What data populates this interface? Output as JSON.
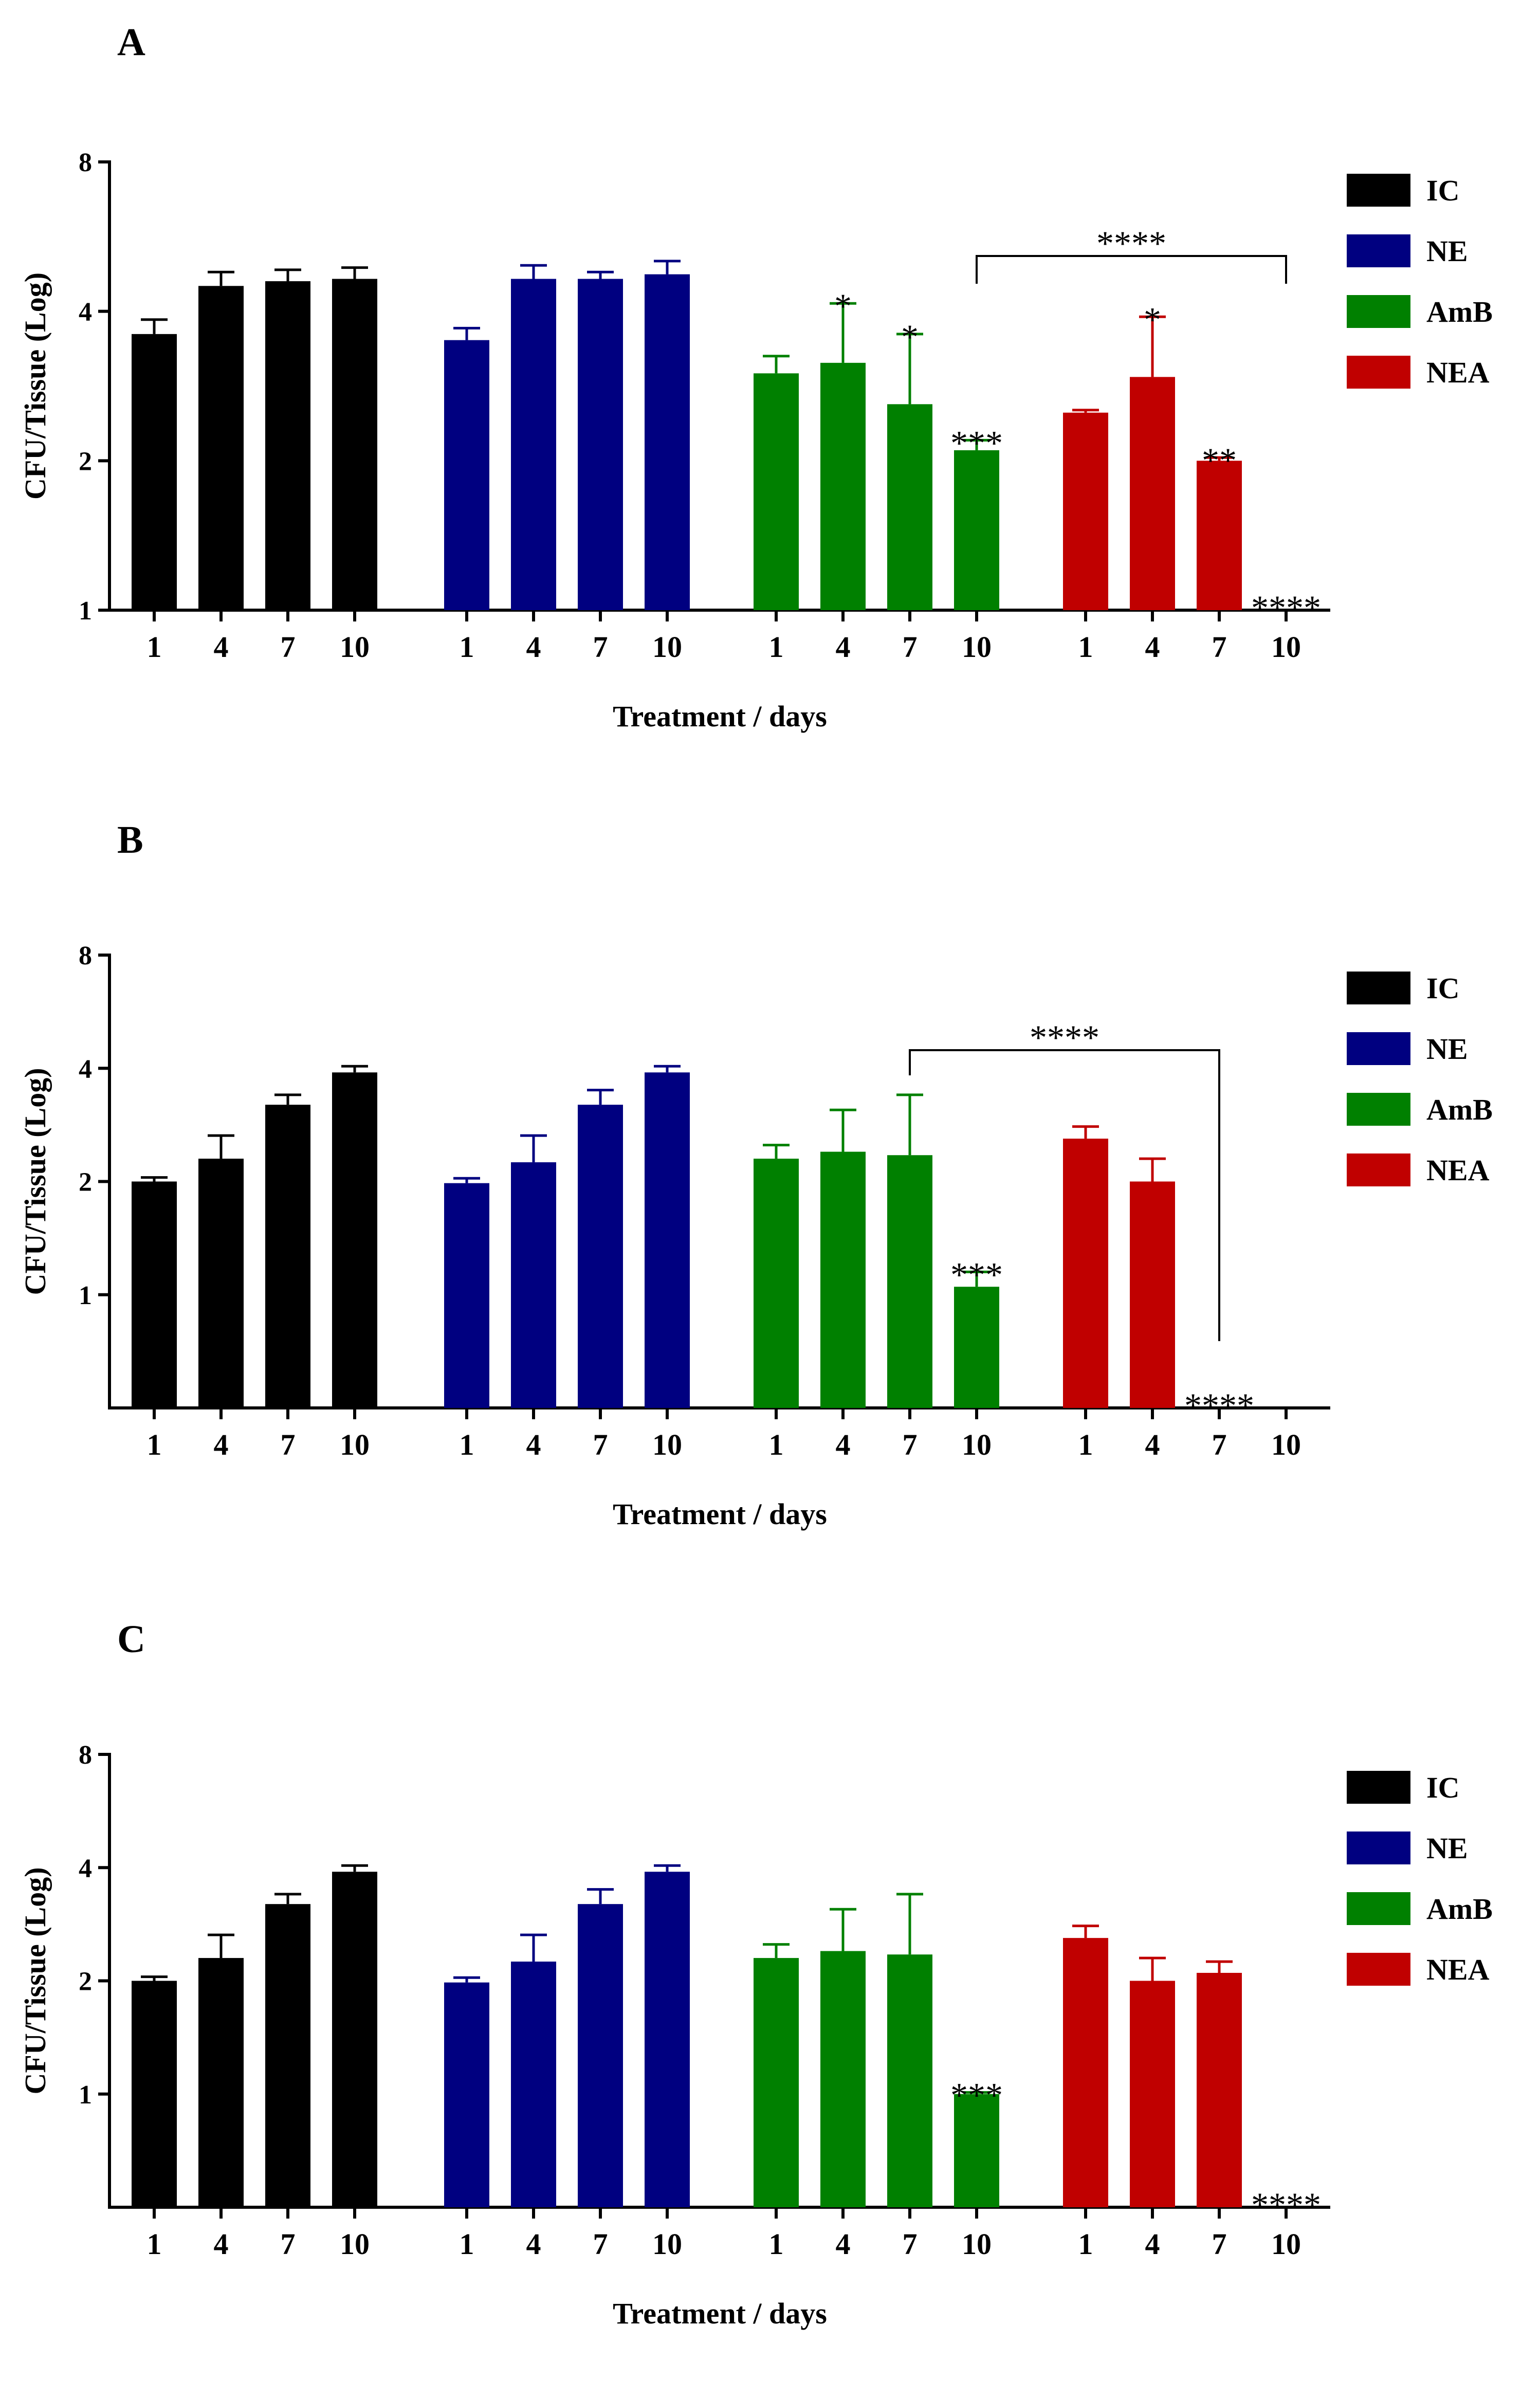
{
  "chart_data": [
    {
      "type": "bar",
      "panel_label": "A",
      "title": "",
      "xlabel": "Treatment / days",
      "ylabel": "CFU/Tissue (Log)",
      "yscale": "log2",
      "ylim": [
        1,
        8
      ],
      "yticks": [
        "1",
        "2",
        "4",
        "8"
      ],
      "legend": [
        "IC",
        "NE",
        "AmB",
        "NEA"
      ],
      "legend_position": "right",
      "colors": {
        "IC": "#000000",
        "NE": "#000080",
        "AmB": "#008000",
        "NEA": "#c00000"
      },
      "series": [
        {
          "name": "IC",
          "days": [
            "1",
            "4",
            "7",
            "10"
          ],
          "values": [
            3.6,
            4.5,
            4.6,
            4.65
          ],
          "errors": [
            0.25,
            0.3,
            0.25,
            0.25
          ],
          "stars": [
            "",
            "",
            "",
            ""
          ]
        },
        {
          "name": "NE",
          "days": [
            "1",
            "4",
            "7",
            "10"
          ],
          "values": [
            3.5,
            4.65,
            4.65,
            4.75
          ],
          "errors": [
            0.2,
            0.3,
            0.15,
            0.3
          ],
          "stars": [
            "",
            "",
            "",
            ""
          ]
        },
        {
          "name": "AmB",
          "days": [
            "1",
            "4",
            "7",
            "10"
          ],
          "values": [
            3.0,
            3.15,
            2.6,
            2.1
          ],
          "errors": [
            0.25,
            1.0,
            1.0,
            0.1
          ],
          "stars": [
            "",
            "*",
            "*",
            "***"
          ]
        },
        {
          "name": "NEA",
          "days": [
            "1",
            "4",
            "7",
            "10"
          ],
          "values": [
            2.5,
            2.95,
            2.0,
            null
          ],
          "errors": [
            0.03,
            0.95,
            0.03,
            null
          ],
          "stars": [
            "",
            "*",
            "**",
            "****"
          ]
        }
      ],
      "bracket": {
        "from": "AmB 10",
        "to": "NEA 10",
        "label": "****"
      }
    },
    {
      "type": "bar",
      "panel_label": "B",
      "title": "",
      "xlabel": "Treatment / days",
      "ylabel": "CFU/Tissue (Log)",
      "yscale": "log2",
      "ylim": [
        0.5,
        8
      ],
      "yticks": [
        "1",
        "2",
        "4",
        "8"
      ],
      "legend": [
        "IC",
        "NE",
        "AmB",
        "NEA"
      ],
      "legend_position": "right",
      "colors": {
        "IC": "#000000",
        "NE": "#000080",
        "AmB": "#008000",
        "NEA": "#c00000"
      },
      "series": [
        {
          "name": "IC",
          "days": [
            "1",
            "4",
            "7",
            "10"
          ],
          "values": [
            2.0,
            2.3,
            3.2,
            3.9
          ],
          "errors": [
            0.05,
            0.35,
            0.2,
            0.15
          ],
          "stars": [
            "",
            "",
            "",
            ""
          ]
        },
        {
          "name": "NE",
          "days": [
            "1",
            "4",
            "7",
            "10"
          ],
          "values": [
            1.98,
            2.25,
            3.2,
            3.9
          ],
          "errors": [
            0.06,
            0.4,
            0.3,
            0.15
          ],
          "stars": [
            "",
            "",
            "",
            ""
          ]
        },
        {
          "name": "AmB",
          "days": [
            "1",
            "4",
            "7",
            "10"
          ],
          "values": [
            2.3,
            2.4,
            2.35,
            1.05
          ],
          "errors": [
            0.2,
            0.7,
            1.05,
            0.1
          ],
          "stars": [
            "",
            "",
            "",
            "***"
          ]
        },
        {
          "name": "NEA",
          "days": [
            "1",
            "4",
            "7",
            "10"
          ],
          "values": [
            2.6,
            2.0,
            null,
            null
          ],
          "errors": [
            0.2,
            0.3,
            null,
            null
          ],
          "stars": [
            "",
            "",
            "****",
            ""
          ]
        }
      ],
      "bracket": {
        "from": "AmB 7",
        "to": "NEA 7",
        "label": "****"
      }
    },
    {
      "type": "bar",
      "panel_label": "C",
      "title": "",
      "xlabel": "Treatment / days",
      "ylabel": "CFU/Tissue (Log)",
      "yscale": "log2",
      "ylim": [
        0.5,
        8
      ],
      "yticks": [
        "1",
        "2",
        "4",
        "8"
      ],
      "legend": [
        "IC",
        "NE",
        "AmB",
        "NEA"
      ],
      "legend_position": "right",
      "colors": {
        "IC": "#000000",
        "NE": "#000080",
        "AmB": "#008000",
        "NEA": "#c00000"
      },
      "series": [
        {
          "name": "IC",
          "days": [
            "1",
            "4",
            "7",
            "10"
          ],
          "values": [
            2.0,
            2.3,
            3.2,
            3.9
          ],
          "errors": [
            0.05,
            0.35,
            0.2,
            0.15
          ],
          "stars": [
            "",
            "",
            "",
            ""
          ]
        },
        {
          "name": "NE",
          "days": [
            "1",
            "4",
            "7",
            "10"
          ],
          "values": [
            1.98,
            2.25,
            3.2,
            3.9
          ],
          "errors": [
            0.06,
            0.4,
            0.3,
            0.15
          ],
          "stars": [
            "",
            "",
            "",
            ""
          ]
        },
        {
          "name": "AmB",
          "days": [
            "1",
            "4",
            "7",
            "10"
          ],
          "values": [
            2.3,
            2.4,
            2.35,
            1.0
          ],
          "errors": [
            0.2,
            0.7,
            1.05,
            0.01
          ],
          "stars": [
            "",
            "",
            "",
            "***"
          ]
        },
        {
          "name": "NEA",
          "days": [
            "1",
            "4",
            "7",
            "10"
          ],
          "values": [
            2.6,
            2.0,
            2.1,
            null
          ],
          "errors": [
            0.2,
            0.3,
            0.15,
            null
          ],
          "stars": [
            "",
            "",
            "",
            "****"
          ]
        }
      ],
      "bracket": null
    }
  ]
}
